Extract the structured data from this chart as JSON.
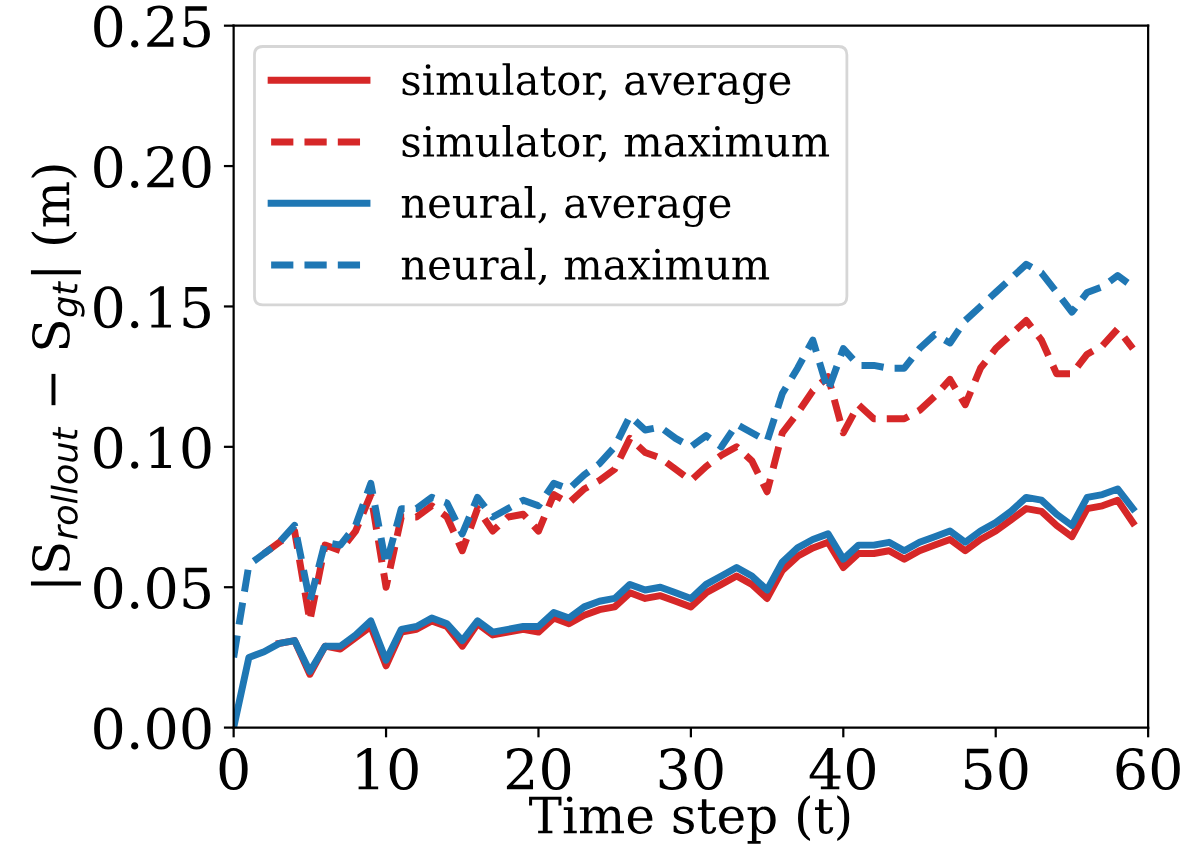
{
  "chart_data": {
    "type": "line",
    "xlabel": "Time step (t)",
    "ylabel": "|S$_{rollout}$ − S$_{gt}$| (m)",
    "x": [
      0,
      1,
      2,
      3,
      4,
      5,
      6,
      7,
      8,
      9,
      10,
      11,
      12,
      13,
      14,
      15,
      16,
      17,
      18,
      19,
      20,
      21,
      22,
      23,
      24,
      25,
      26,
      27,
      28,
      29,
      30,
      31,
      32,
      33,
      34,
      35,
      36,
      37,
      38,
      39,
      40,
      41,
      42,
      43,
      44,
      45,
      46,
      47,
      48,
      49,
      50,
      51,
      52,
      53,
      54,
      55,
      56,
      57,
      58,
      59
    ],
    "xlim": [
      0,
      60
    ],
    "xticks": [
      0,
      10,
      20,
      30,
      40,
      50,
      60
    ],
    "ylim": [
      0,
      0.25
    ],
    "yticks": [
      {
        "value": 0,
        "label": "0.00"
      },
      {
        "value": 0.05,
        "label": "0.05"
      },
      {
        "value": 0.1,
        "label": "0.10"
      },
      {
        "value": 0.15,
        "label": "0.15"
      },
      {
        "value": 0.2,
        "label": "0.20"
      },
      {
        "value": 0.25,
        "label": "0.25"
      }
    ],
    "grid": false,
    "legend": "top left",
    "series": [
      {
        "name": "simulator, average",
        "color": "#d62728",
        "line_style": "solid",
        "values": [
          null,
          null,
          null,
          0.03,
          0.031,
          0.019,
          0.029,
          0.028,
          0.032,
          0.036,
          0.022,
          0.034,
          0.035,
          0.038,
          0.036,
          0.029,
          0.037,
          0.033,
          0.034,
          0.035,
          0.034,
          0.039,
          0.037,
          0.04,
          0.042,
          0.043,
          0.048,
          0.046,
          0.047,
          0.045,
          0.043,
          0.048,
          0.051,
          0.054,
          0.051,
          0.046,
          0.056,
          0.061,
          0.064,
          0.066,
          0.057,
          0.062,
          0.062,
          0.063,
          0.06,
          0.063,
          0.065,
          0.067,
          0.063,
          0.067,
          0.07,
          0.074,
          0.078,
          0.077,
          0.072,
          0.068,
          0.078,
          0.079,
          0.081,
          0.073
        ]
      },
      {
        "name": "simulator, maximum",
        "color": "#d62728",
        "line_style": "dashed",
        "values": [
          null,
          null,
          0.062,
          0.066,
          0.07,
          0.038,
          0.065,
          0.063,
          0.07,
          0.083,
          0.05,
          0.075,
          0.075,
          0.079,
          0.075,
          0.063,
          0.078,
          0.07,
          0.075,
          0.076,
          0.07,
          0.083,
          0.08,
          0.085,
          0.088,
          0.092,
          0.103,
          0.098,
          0.096,
          0.092,
          0.088,
          0.093,
          0.097,
          0.1,
          0.095,
          0.084,
          0.105,
          0.112,
          0.12,
          0.125,
          0.105,
          0.115,
          0.11,
          0.11,
          0.11,
          0.113,
          0.118,
          0.124,
          0.115,
          0.128,
          0.135,
          0.14,
          0.145,
          0.138,
          0.126,
          0.126,
          0.133,
          0.136,
          0.142,
          0.135
        ]
      },
      {
        "name": "neural, average",
        "color": "#1f77b4",
        "line_style": "solid",
        "values": [
          0.0,
          0.025,
          0.027,
          0.03,
          0.031,
          0.02,
          0.029,
          0.029,
          0.033,
          0.038,
          0.024,
          0.035,
          0.036,
          0.039,
          0.037,
          0.031,
          0.038,
          0.034,
          0.035,
          0.036,
          0.036,
          0.041,
          0.039,
          0.043,
          0.045,
          0.046,
          0.051,
          0.049,
          0.05,
          0.048,
          0.046,
          0.051,
          0.054,
          0.057,
          0.054,
          0.049,
          0.059,
          0.064,
          0.067,
          0.069,
          0.06,
          0.065,
          0.065,
          0.066,
          0.063,
          0.066,
          0.068,
          0.07,
          0.066,
          0.07,
          0.073,
          0.077,
          0.082,
          0.081,
          0.076,
          0.072,
          0.082,
          0.083,
          0.085,
          0.078
        ]
      },
      {
        "name": "neural, maximum",
        "color": "#1f77b4",
        "line_style": "dashed",
        "values": [
          0.025,
          0.058,
          0.062,
          0.066,
          0.072,
          0.045,
          0.066,
          0.065,
          0.072,
          0.087,
          0.058,
          0.078,
          0.078,
          0.082,
          0.08,
          0.069,
          0.082,
          0.075,
          0.078,
          0.081,
          0.079,
          0.087,
          0.085,
          0.09,
          0.094,
          0.1,
          0.111,
          0.106,
          0.107,
          0.103,
          0.1,
          0.104,
          0.1,
          0.108,
          0.105,
          0.102,
          0.119,
          0.128,
          0.138,
          0.12,
          0.135,
          0.129,
          0.129,
          0.128,
          0.128,
          0.135,
          0.14,
          0.137,
          0.145,
          0.15,
          0.155,
          0.16,
          0.165,
          0.162,
          0.155,
          0.148,
          0.155,
          0.157,
          0.161,
          0.157
        ]
      }
    ]
  }
}
